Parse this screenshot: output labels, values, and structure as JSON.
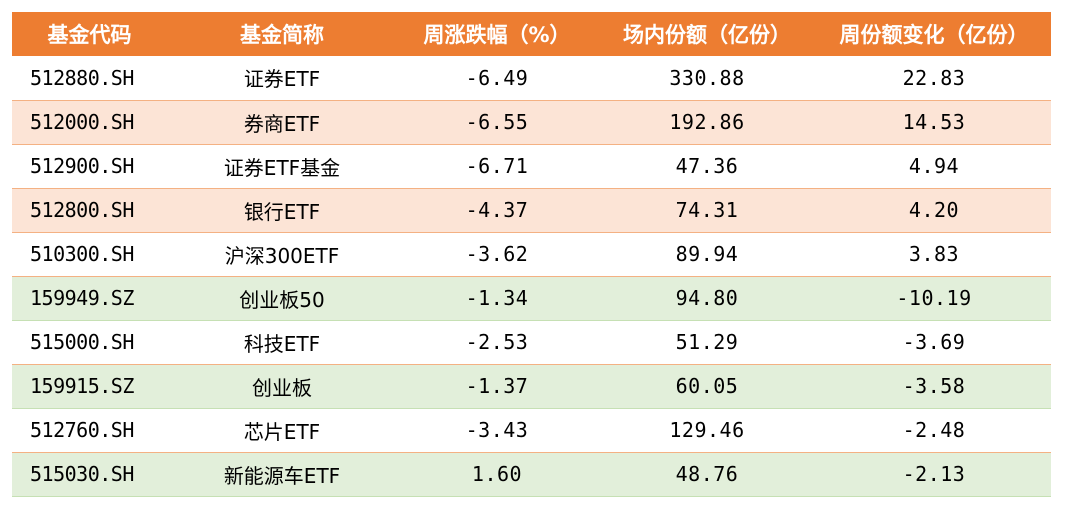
{
  "colors": {
    "header_bg": "#ED7D31",
    "header_text": "#FFFFFF",
    "row_pink": "#FCE4D6",
    "row_green": "#E2EFDA",
    "row_plain": "#FFFFFF"
  },
  "table": {
    "headers": [
      "基金代码",
      "基金简称",
      "周涨跌幅（%）",
      "场内份额（亿份）",
      "周份额变化（亿份）"
    ],
    "rows": [
      {
        "code": "512880.SH",
        "name": "证券ETF",
        "weekly_change": "-6.49",
        "shares": "330.88",
        "share_change": "22.83",
        "tint": "plain"
      },
      {
        "code": "512000.SH",
        "name": "券商ETF",
        "weekly_change": "-6.55",
        "shares": "192.86",
        "share_change": "14.53",
        "tint": "pink"
      },
      {
        "code": "512900.SH",
        "name": "证券ETF基金",
        "weekly_change": "-6.71",
        "shares": "47.36",
        "share_change": "4.94",
        "tint": "plain"
      },
      {
        "code": "512800.SH",
        "name": "银行ETF",
        "weekly_change": "-4.37",
        "shares": "74.31",
        "share_change": "4.20",
        "tint": "pink"
      },
      {
        "code": "510300.SH",
        "name": "沪深300ETF",
        "weekly_change": "-3.62",
        "shares": "89.94",
        "share_change": "3.83",
        "tint": "plain"
      },
      {
        "code": "159949.SZ",
        "name": "创业板50",
        "weekly_change": "-1.34",
        "shares": "94.80",
        "share_change": "-10.19",
        "tint": "green"
      },
      {
        "code": "515000.SH",
        "name": "科技ETF",
        "weekly_change": "-2.53",
        "shares": "51.29",
        "share_change": "-3.69",
        "tint": "plain"
      },
      {
        "code": "159915.SZ",
        "name": "创业板",
        "weekly_change": "-1.37",
        "shares": "60.05",
        "share_change": "-3.58",
        "tint": "green"
      },
      {
        "code": "512760.SH",
        "name": "芯片ETF",
        "weekly_change": "-3.43",
        "shares": "129.46",
        "share_change": "-2.48",
        "tint": "plain"
      },
      {
        "code": "515030.SH",
        "name": "新能源车ETF",
        "weekly_change": "1.60",
        "shares": "48.76",
        "share_change": "-2.13",
        "tint": "green"
      }
    ]
  }
}
